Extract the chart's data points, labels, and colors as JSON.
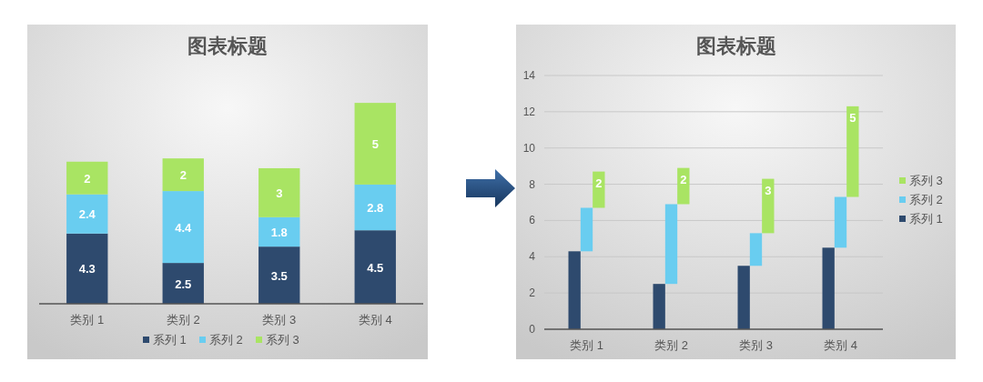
{
  "chart_data": [
    {
      "type": "bar",
      "title": "图表标题",
      "stacked": true,
      "categories": [
        "类别 1",
        "类别 2",
        "类别 3",
        "类别 4"
      ],
      "series": [
        {
          "name": "系列 1",
          "color": "#2e4a6e",
          "values": [
            4.3,
            2.5,
            3.5,
            4.5
          ]
        },
        {
          "name": "系列 2",
          "color": "#69cdf0",
          "values": [
            2.4,
            4.4,
            1.8,
            2.8
          ]
        },
        {
          "name": "系列 3",
          "color": "#a9e463",
          "values": [
            2,
            2,
            3,
            5
          ]
        }
      ],
      "data_labels": true,
      "legend": "bottom"
    },
    {
      "type": "bar",
      "title": "图表标题",
      "categories": [
        "类别 1",
        "类别 2",
        "类别 3",
        "类别 4"
      ],
      "series": [
        {
          "name": "系列 1",
          "color": "#2e4a6e",
          "values": [
            4.3,
            2.5,
            3.5,
            4.5
          ],
          "base": [
            0,
            0,
            0,
            0
          ]
        },
        {
          "name": "系列 2",
          "color": "#69cdf0",
          "values": [
            2.4,
            4.4,
            1.8,
            2.8
          ],
          "base": [
            4.3,
            2.5,
            3.5,
            4.5
          ]
        },
        {
          "name": "系列 3",
          "color": "#a9e463",
          "values": [
            2,
            2,
            3,
            5
          ],
          "base": [
            6.7,
            6.9,
            5.3,
            7.3
          ],
          "value_labels": [
            "2",
            "2",
            "3",
            "5"
          ]
        }
      ],
      "ylim": [
        0,
        14
      ],
      "yticks": [
        0,
        2,
        4,
        6,
        8,
        10,
        12,
        14
      ],
      "grid": "y",
      "legend": "right"
    }
  ]
}
